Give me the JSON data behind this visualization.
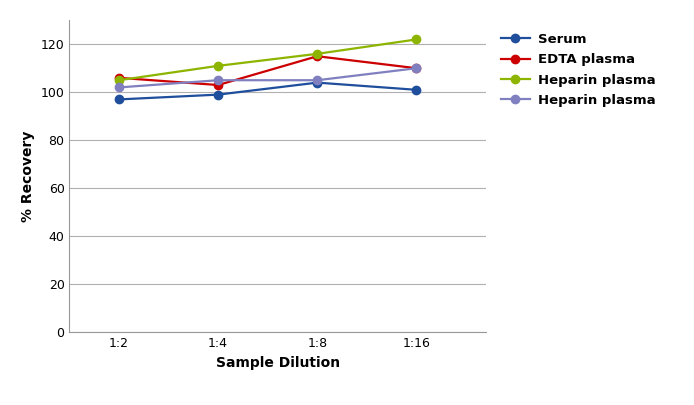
{
  "x_labels": [
    "1:2",
    "1:4",
    "1:8",
    "1:16"
  ],
  "x_positions": [
    1,
    2,
    3,
    4
  ],
  "series": [
    {
      "name": "Serum",
      "color": "#1f4e9c",
      "values": [
        97,
        99,
        104,
        101
      ]
    },
    {
      "name": "EDTA plasma",
      "color": "#cc0000",
      "values": [
        106,
        103,
        115,
        110
      ]
    },
    {
      "name": "Heparin plasma",
      "color": "#8db500",
      "values": [
        105,
        111,
        116,
        122
      ]
    },
    {
      "name": "Heparin plasma",
      "color": "#8080c0",
      "values": [
        102,
        105,
        105,
        110
      ]
    }
  ],
  "ylim": [
    0,
    130
  ],
  "yticks": [
    0,
    20,
    40,
    60,
    80,
    100,
    120
  ],
  "ylabel": "% Recovery",
  "xlabel": "Sample Dilution",
  "background_color": "#ffffff",
  "grid_color": "#b0b0b0",
  "axis_label_fontsize": 10,
  "tick_fontsize": 9,
  "legend_fontsize": 9.5,
  "marker": "o",
  "marker_size": 6,
  "line_width": 1.6
}
